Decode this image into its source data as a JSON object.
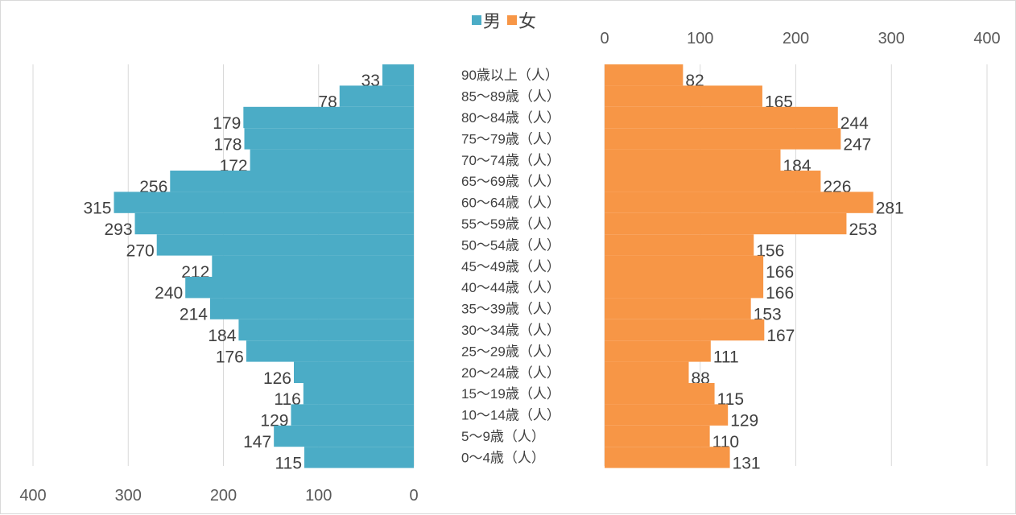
{
  "chart_data": {
    "type": "bar",
    "subtype": "population-pyramid",
    "categories": [
      "90歳以上（人）",
      "85～89歳（人）",
      "80～84歳（人）",
      "75～79歳（人）",
      "70～74歳（人）",
      "65～69歳（人）",
      "60～64歳（人）",
      "55～59歳（人）",
      "50～54歳（人）",
      "45～49歳（人）",
      "40～44歳（人）",
      "35～39歳（人）",
      "30～34歳（人）",
      "25～29歳（人）",
      "20～24歳（人）",
      "15～19歳（人）",
      "10～14歳（人）",
      "5～9歳（人）",
      "0～4歳（人）"
    ],
    "series": [
      {
        "name": "男",
        "color": "#4bacc6",
        "values": [
          33,
          78,
          179,
          178,
          172,
          256,
          315,
          293,
          270,
          212,
          240,
          214,
          184,
          176,
          126,
          116,
          129,
          147,
          115
        ]
      },
      {
        "name": "女",
        "color": "#f79646",
        "values": [
          82,
          165,
          244,
          247,
          184,
          226,
          281,
          253,
          156,
          166,
          166,
          153,
          167,
          111,
          88,
          115,
          129,
          110,
          131
        ]
      }
    ],
    "left_axis": {
      "ticks": [
        "400",
        "300",
        "200",
        "100",
        "0"
      ],
      "range": [
        0,
        400
      ]
    },
    "right_axis": {
      "ticks": [
        "0",
        "100",
        "200",
        "300",
        "400"
      ],
      "range": [
        0,
        400
      ]
    },
    "legend_position": "top-center",
    "grid": "vertical"
  }
}
